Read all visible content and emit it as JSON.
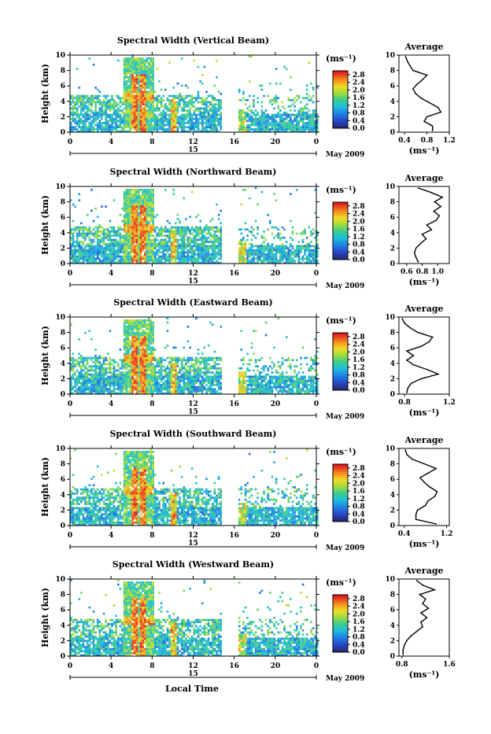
{
  "footer": {
    "x_axis_label": "Local Time"
  },
  "chart_data": [
    {
      "type": "heatmap",
      "title": "Spectral Width (Vertical Beam)",
      "ylabel": "Height (km)",
      "y_ticks": [
        "0",
        "2",
        "4",
        "6",
        "8",
        "10"
      ],
      "x_ticks": [
        "0",
        "4",
        "8",
        "12",
        "16",
        "20",
        "0"
      ],
      "xlim": [
        0,
        24
      ],
      "ylim": [
        0,
        10
      ],
      "date_day": "15",
      "date_month": "May 2009",
      "colorbar": {
        "unit": "(ms⁻¹)",
        "ticks": [
          "0.0",
          "0.4",
          "0.8",
          "1.2",
          "1.6",
          "2.0",
          "2.4",
          "2.8"
        ],
        "range": [
          0,
          3.0
        ]
      },
      "average_profile": {
        "title": "Average",
        "xlabel": "(ms⁻¹)",
        "x_ticks": [
          "0.4",
          "0.8",
          "1.2"
        ],
        "xlim": [
          0.3,
          1.2
        ],
        "ylim": [
          0,
          10
        ],
        "y_ticks": [
          "0",
          "2",
          "4",
          "6",
          "8",
          "10"
        ],
        "heights": [
          0.2,
          0.8,
          1.4,
          2.0,
          2.6,
          3.2,
          3.8,
          4.4,
          5.0,
          5.6,
          6.2,
          6.8,
          7.4,
          8.0,
          8.6,
          9.2,
          9.8
        ],
        "values": [
          0.9,
          0.9,
          0.75,
          0.8,
          1.05,
          1.0,
          0.85,
          0.7,
          0.6,
          0.55,
          0.62,
          0.72,
          0.8,
          0.55,
          0.5,
          0.45,
          0.42
        ]
      }
    },
    {
      "type": "heatmap",
      "title": "Spectral Width (Northward Beam)",
      "ylabel": "Height (km)",
      "y_ticks": [
        "0",
        "2",
        "4",
        "6",
        "8",
        "10"
      ],
      "x_ticks": [
        "0",
        "4",
        "8",
        "12",
        "16",
        "20",
        "0"
      ],
      "xlim": [
        0,
        24
      ],
      "ylim": [
        0,
        10
      ],
      "date_day": "15",
      "date_month": "May 2009",
      "colorbar": {
        "unit": "(ms⁻¹)",
        "ticks": [
          "0.0",
          "0.4",
          "0.8",
          "1.2",
          "1.6",
          "2.0",
          "2.4",
          "2.8"
        ],
        "range": [
          0,
          3.0
        ]
      },
      "average_profile": {
        "title": "Average",
        "xlabel": "(ms⁻¹)",
        "x_ticks": [
          "0.6",
          "0.8",
          "1.0"
        ],
        "xlim": [
          0.5,
          1.15
        ],
        "ylim": [
          0,
          10
        ],
        "y_ticks": [
          "0",
          "2",
          "4",
          "6",
          "8",
          "10"
        ],
        "heights": [
          0.2,
          0.8,
          1.4,
          2.0,
          2.6,
          3.2,
          3.8,
          4.4,
          5.0,
          5.6,
          6.2,
          6.8,
          7.4,
          8.0,
          8.6,
          9.2,
          9.8
        ],
        "values": [
          0.75,
          0.72,
          0.7,
          0.72,
          0.78,
          0.85,
          0.8,
          0.92,
          0.86,
          0.98,
          1.02,
          0.95,
          1.04,
          0.96,
          1.06,
          0.92,
          0.75
        ]
      }
    },
    {
      "type": "heatmap",
      "title": "Spectral Width (Eastward Beam)",
      "ylabel": "Height (km)",
      "y_ticks": [
        "0",
        "2",
        "4",
        "6",
        "8",
        "10"
      ],
      "x_ticks": [
        "0",
        "4",
        "8",
        "12",
        "16",
        "20",
        "0"
      ],
      "xlim": [
        0,
        24
      ],
      "ylim": [
        0,
        10
      ],
      "date_day": "15",
      "date_month": "May 2009",
      "colorbar": {
        "unit": "(ms⁻¹)",
        "ticks": [
          "0.0",
          "0.4",
          "0.8",
          "1.2",
          "1.6",
          "2.0",
          "2.4",
          "2.8"
        ],
        "range": [
          0,
          3.0
        ]
      },
      "average_profile": {
        "title": "Average",
        "xlabel": "(ms⁻¹)",
        "x_ticks": [
          "0.8",
          "1.2"
        ],
        "xlim": [
          0.75,
          1.2
        ],
        "ylim": [
          0,
          10
        ],
        "y_ticks": [
          "0",
          "2",
          "4",
          "6",
          "8",
          "10"
        ],
        "heights": [
          0.2,
          0.8,
          1.4,
          2.0,
          2.6,
          3.2,
          3.8,
          4.4,
          5.0,
          5.6,
          6.2,
          6.8,
          7.4,
          8.0,
          8.6,
          9.2,
          9.8
        ],
        "values": [
          0.82,
          0.83,
          0.86,
          0.95,
          1.1,
          1.0,
          0.88,
          0.82,
          0.88,
          0.82,
          0.95,
          1.02,
          1.05,
          0.92,
          0.85,
          0.8,
          0.78
        ]
      }
    },
    {
      "type": "heatmap",
      "title": "Spectral Width (Southward Beam)",
      "ylabel": "Height (km)",
      "y_ticks": [
        "0",
        "2",
        "4",
        "6",
        "8",
        "10"
      ],
      "x_ticks": [
        "0",
        "4",
        "8",
        "12",
        "16",
        "20",
        "0"
      ],
      "xlim": [
        0,
        24
      ],
      "ylim": [
        0,
        10
      ],
      "date_day": "15",
      "date_month": "May 2009",
      "colorbar": {
        "unit": "(ms⁻¹)",
        "ticks": [
          "0.0",
          "0.4",
          "0.8",
          "1.2",
          "1.6",
          "2.0",
          "2.4",
          "2.8"
        ],
        "range": [
          0,
          3.0
        ]
      },
      "average_profile": {
        "title": "Average",
        "xlabel": "(ms⁻¹)",
        "x_ticks": [
          "0.4",
          "1.2"
        ],
        "xlim": [
          0.3,
          1.25
        ],
        "ylim": [
          0,
          10
        ],
        "y_ticks": [
          "0",
          "2",
          "4",
          "6",
          "8",
          "10"
        ],
        "heights": [
          0.2,
          0.8,
          1.4,
          2.0,
          2.6,
          3.2,
          3.8,
          4.4,
          5.0,
          5.6,
          6.2,
          6.8,
          7.4,
          8.0,
          8.6,
          9.2,
          9.8
        ],
        "values": [
          1.0,
          0.62,
          0.62,
          0.65,
          0.8,
          0.85,
          0.98,
          1.02,
          0.88,
          0.78,
          0.7,
          0.85,
          1.0,
          0.78,
          0.55,
          0.45,
          0.42
        ]
      }
    },
    {
      "type": "heatmap",
      "title": "Spectral Width (Westward Beam)",
      "ylabel": "Height (km)",
      "y_ticks": [
        "0",
        "2",
        "4",
        "6",
        "8",
        "10"
      ],
      "x_ticks": [
        "0",
        "4",
        "8",
        "12",
        "16",
        "20",
        "0"
      ],
      "xlim": [
        0,
        24
      ],
      "ylim": [
        0,
        10
      ],
      "date_day": "15",
      "date_month": "May 2009",
      "colorbar": {
        "unit": "(ms⁻¹)",
        "ticks": [
          "0.0",
          "0.4",
          "0.8",
          "1.2",
          "1.6",
          "2.0",
          "2.4",
          "2.8"
        ],
        "range": [
          0,
          3.0
        ]
      },
      "average_profile": {
        "title": "Average",
        "xlabel": "(ms⁻¹)",
        "x_ticks": [
          "0.8",
          "1.6"
        ],
        "xlim": [
          0.75,
          1.6
        ],
        "ylim": [
          0,
          10
        ],
        "y_ticks": [
          "0",
          "2",
          "4",
          "6",
          "8",
          "10"
        ],
        "heights": [
          0.2,
          0.8,
          1.4,
          2.0,
          2.6,
          3.2,
          3.8,
          4.4,
          5.0,
          5.6,
          6.2,
          6.8,
          7.4,
          8.0,
          8.6,
          9.2,
          9.8
        ],
        "values": [
          0.82,
          0.82,
          0.84,
          0.88,
          0.95,
          1.05,
          1.15,
          1.12,
          1.22,
          1.12,
          1.25,
          1.15,
          1.2,
          1.1,
          1.35,
          1.15,
          1.05
        ]
      }
    }
  ]
}
